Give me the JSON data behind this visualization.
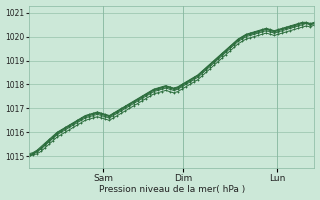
{
  "bg_color": "#cce8d8",
  "grid_color": "#88b8a0",
  "line_color": "#2d6e3e",
  "marker": "+",
  "xlabel": "Pression niveau de la mer( hPa )",
  "ylim": [
    1014.5,
    1021.3
  ],
  "yticks": [
    1015,
    1016,
    1017,
    1018,
    1019,
    1020,
    1021
  ],
  "day_labels": [
    "Sam",
    "Dim",
    "Lun"
  ],
  "day_positions": [
    0.26,
    0.54,
    0.87
  ],
  "n_points": 72,
  "series": [
    [
      1015.0,
      1015.05,
      1015.1,
      1015.2,
      1015.35,
      1015.5,
      1015.65,
      1015.8,
      1015.9,
      1016.0,
      1016.1,
      1016.2,
      1016.3,
      1016.4,
      1016.5,
      1016.55,
      1016.6,
      1016.65,
      1016.6,
      1016.55,
      1016.5,
      1016.6,
      1016.7,
      1016.8,
      1016.9,
      1017.0,
      1017.1,
      1017.2,
      1017.3,
      1017.4,
      1017.5,
      1017.6,
      1017.65,
      1017.7,
      1017.75,
      1017.7,
      1017.65,
      1017.7,
      1017.8,
      1017.9,
      1018.0,
      1018.1,
      1018.2,
      1018.35,
      1018.5,
      1018.65,
      1018.8,
      1018.95,
      1019.1,
      1019.25,
      1019.4,
      1019.55,
      1019.7,
      1019.8,
      1019.9,
      1019.95,
      1020.0,
      1020.05,
      1020.1,
      1020.15,
      1020.1,
      1020.05,
      1020.1,
      1020.15,
      1020.2,
      1020.25,
      1020.3,
      1020.35,
      1020.4,
      1020.45,
      1020.4,
      1020.5
    ],
    [
      1015.05,
      1015.1,
      1015.2,
      1015.3,
      1015.45,
      1015.6,
      1015.75,
      1015.9,
      1016.0,
      1016.1,
      1016.2,
      1016.3,
      1016.4,
      1016.5,
      1016.6,
      1016.65,
      1016.7,
      1016.75,
      1016.7,
      1016.65,
      1016.6,
      1016.7,
      1016.8,
      1016.9,
      1017.0,
      1017.1,
      1017.2,
      1017.3,
      1017.4,
      1017.5,
      1017.6,
      1017.7,
      1017.75,
      1017.8,
      1017.85,
      1017.8,
      1017.75,
      1017.8,
      1017.9,
      1018.0,
      1018.1,
      1018.2,
      1018.3,
      1018.45,
      1018.6,
      1018.75,
      1018.9,
      1019.05,
      1019.2,
      1019.35,
      1019.5,
      1019.65,
      1019.8,
      1019.9,
      1020.0,
      1020.05,
      1020.1,
      1020.15,
      1020.2,
      1020.25,
      1020.2,
      1020.15,
      1020.2,
      1020.25,
      1020.3,
      1020.35,
      1020.4,
      1020.45,
      1020.5,
      1020.55,
      1020.5,
      1020.55
    ],
    [
      1015.1,
      1015.15,
      1015.25,
      1015.4,
      1015.55,
      1015.7,
      1015.85,
      1016.0,
      1016.1,
      1016.2,
      1016.3,
      1016.4,
      1016.5,
      1016.6,
      1016.7,
      1016.75,
      1016.8,
      1016.85,
      1016.8,
      1016.75,
      1016.7,
      1016.8,
      1016.9,
      1017.0,
      1017.1,
      1017.2,
      1017.3,
      1017.4,
      1017.5,
      1017.6,
      1017.7,
      1017.8,
      1017.85,
      1017.9,
      1017.95,
      1017.9,
      1017.85,
      1017.9,
      1018.0,
      1018.1,
      1018.2,
      1018.3,
      1018.4,
      1018.55,
      1018.7,
      1018.85,
      1019.0,
      1019.15,
      1019.3,
      1019.45,
      1019.6,
      1019.75,
      1019.9,
      1020.0,
      1020.1,
      1020.15,
      1020.2,
      1020.25,
      1020.3,
      1020.35,
      1020.3,
      1020.25,
      1020.3,
      1020.35,
      1020.4,
      1020.45,
      1020.5,
      1020.55,
      1020.6,
      1020.6,
      1020.55,
      1020.6
    ],
    [
      1015.0,
      1015.08,
      1015.18,
      1015.32,
      1015.48,
      1015.63,
      1015.78,
      1015.93,
      1016.05,
      1016.15,
      1016.25,
      1016.35,
      1016.45,
      1016.55,
      1016.65,
      1016.7,
      1016.75,
      1016.8,
      1016.75,
      1016.7,
      1016.65,
      1016.75,
      1016.85,
      1016.95,
      1017.05,
      1017.15,
      1017.25,
      1017.35,
      1017.45,
      1017.55,
      1017.65,
      1017.75,
      1017.8,
      1017.85,
      1017.9,
      1017.85,
      1017.8,
      1017.85,
      1017.95,
      1018.05,
      1018.15,
      1018.25,
      1018.35,
      1018.5,
      1018.65,
      1018.8,
      1018.95,
      1019.1,
      1019.25,
      1019.4,
      1019.55,
      1019.7,
      1019.85,
      1019.95,
      1020.05,
      1020.1,
      1020.15,
      1020.2,
      1020.25,
      1020.3,
      1020.25,
      1020.2,
      1020.25,
      1020.3,
      1020.35,
      1020.4,
      1020.45,
      1020.5,
      1020.55,
      1020.55,
      1020.5,
      1020.55
    ],
    [
      1015.05,
      1015.12,
      1015.22,
      1015.36,
      1015.52,
      1015.67,
      1015.82,
      1015.97,
      1016.08,
      1016.18,
      1016.28,
      1016.38,
      1016.48,
      1016.58,
      1016.68,
      1016.73,
      1016.78,
      1016.83,
      1016.78,
      1016.73,
      1016.68,
      1016.78,
      1016.88,
      1016.98,
      1017.08,
      1017.18,
      1017.28,
      1017.38,
      1017.48,
      1017.58,
      1017.68,
      1017.78,
      1017.83,
      1017.88,
      1017.93,
      1017.88,
      1017.83,
      1017.88,
      1017.98,
      1018.08,
      1018.18,
      1018.28,
      1018.38,
      1018.53,
      1018.68,
      1018.83,
      1018.98,
      1019.13,
      1019.28,
      1019.43,
      1019.58,
      1019.73,
      1019.88,
      1019.98,
      1020.08,
      1020.13,
      1020.18,
      1020.23,
      1020.28,
      1020.33,
      1020.28,
      1020.23,
      1020.28,
      1020.33,
      1020.38,
      1020.43,
      1020.48,
      1020.53,
      1020.58,
      1020.58,
      1020.53,
      1020.58
    ]
  ]
}
